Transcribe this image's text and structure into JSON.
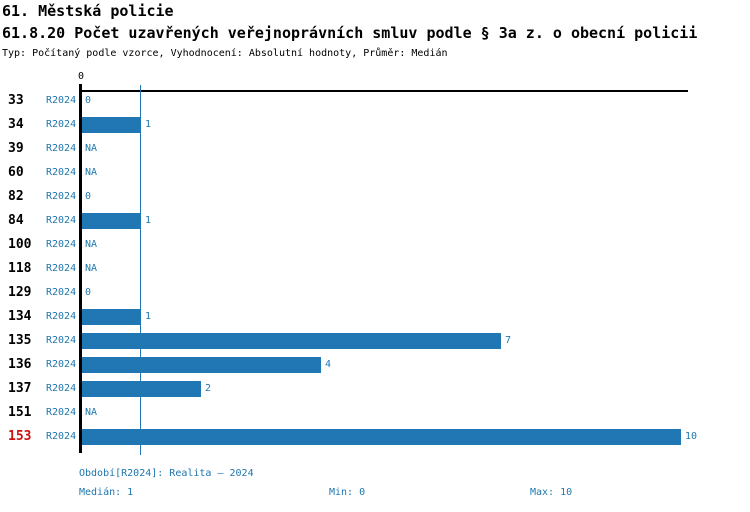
{
  "header": {
    "title": "61. Městská policie",
    "subtitle": "61.8.20 Počet uzavřených veřejnoprávních smluv podle § 3a z. o obecní policii",
    "meta": "Typ: Počítaný podle vzorce, Vyhodnocení: Absolutní hodnoty, Průměr: Medián"
  },
  "chart_data": {
    "type": "bar",
    "orientation": "horizontal",
    "title": "61. Městská policie",
    "subtitle": "61.8.20 Počet uzavřených veřejnoprávních smluv podle § 3a z. o obecní policii",
    "categories": [
      "33",
      "34",
      "39",
      "60",
      "82",
      "84",
      "100",
      "118",
      "129",
      "134",
      "135",
      "136",
      "137",
      "151",
      "153"
    ],
    "series": [
      {
        "name": "R2024",
        "values": [
          0,
          1,
          null,
          null,
          0,
          1,
          null,
          null,
          0,
          1,
          7,
          4,
          2,
          null,
          10
        ]
      }
    ],
    "value_labels": [
      "0",
      "1",
      "NA",
      "NA",
      "0",
      "1",
      "NA",
      "NA",
      "0",
      "1",
      "7",
      "4",
      "2",
      "NA",
      "10"
    ],
    "xlim": [
      0,
      10.1
    ],
    "x_tick_labels": [
      "0"
    ],
    "axis_tick_label": "0",
    "median": 1,
    "min": 0,
    "max": 10,
    "highlighted_category": "153",
    "grid": false,
    "legend_position": "none"
  },
  "footer": {
    "period_label": "Období[R2024]: Realita – 2024",
    "median_label": "Medián: 1",
    "min_label": "Min: 0",
    "max_label": "Max: 10"
  },
  "colors": {
    "bar": "#2176b4",
    "blue_text": "#1f76ad",
    "red_text": "#cc1111",
    "axis": "#000000"
  }
}
